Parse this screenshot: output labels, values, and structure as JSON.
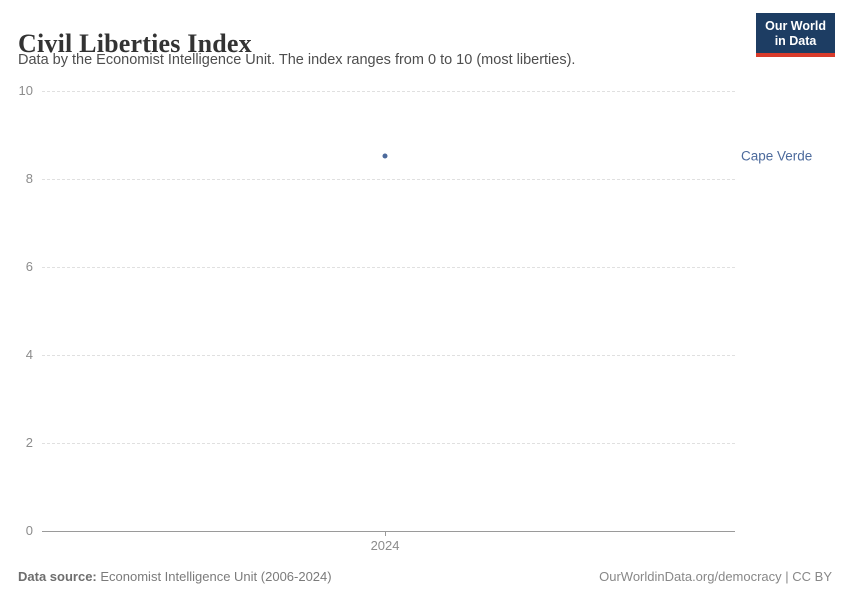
{
  "header": {
    "title": "Civil Liberties Index",
    "subtitle": "Data by the Economist Intelligence Unit. The index ranges from 0 to 10 (most liberties).",
    "logo": {
      "line1": "Our World",
      "line2": "in Data",
      "bg_color": "#1d3d63",
      "accent_color": "#d93b2b"
    }
  },
  "chart_data": {
    "type": "scatter",
    "title": "Civil Liberties Index",
    "subtitle": "Data by the Economist Intelligence Unit. The index ranges from 0 to 10 (most liberties).",
    "x": [
      2024
    ],
    "series": [
      {
        "name": "Cape Verde",
        "values": [
          8.53
        ],
        "color": "#4c6a9c"
      }
    ],
    "xlabel": "",
    "ylabel": "",
    "ylim": [
      0,
      10
    ],
    "yticks": [
      0,
      2,
      4,
      6,
      8,
      10
    ],
    "xticks": [
      "2024"
    ],
    "x_position_frac": [
      0.495
    ],
    "grid": "horizontal-dashed",
    "legend": "entity-label-right-of-point",
    "colors": {
      "gridline": "#e0e0e0",
      "axis": "#9a9a9a",
      "tick_label": "#8c8c8c",
      "point": "#4c6a9c"
    }
  },
  "footer": {
    "source_label": "Data source:",
    "source_text": " Economist Intelligence Unit (2006-2024)",
    "right_text": "OurWorldinData.org/democracy | CC BY"
  }
}
